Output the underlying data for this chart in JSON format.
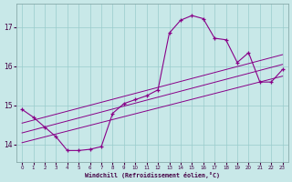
{
  "background_color": "#c8e8e8",
  "grid_color": "#99cccc",
  "line_color": "#880088",
  "hours": [
    0,
    1,
    2,
    3,
    4,
    5,
    6,
    7,
    8,
    9,
    10,
    11,
    12,
    13,
    14,
    15,
    16,
    17,
    18,
    19,
    20,
    21,
    22,
    23
  ],
  "temp": [
    14.9,
    14.7,
    14.45,
    14.2,
    13.85,
    13.85,
    13.88,
    13.95,
    14.8,
    15.05,
    15.15,
    15.25,
    15.4,
    16.85,
    17.18,
    17.3,
    17.22,
    16.72,
    16.68,
    16.1,
    16.35,
    15.6,
    15.6,
    15.92
  ],
  "line1": [
    [
      0,
      14.05
    ],
    [
      23,
      15.75
    ]
  ],
  "line2": [
    [
      0,
      14.3
    ],
    [
      23,
      16.05
    ]
  ],
  "line3": [
    [
      0,
      14.55
    ],
    [
      23,
      16.3
    ]
  ],
  "ylim": [
    13.55,
    17.6
  ],
  "xlim": [
    -0.5,
    23.5
  ],
  "yticks": [
    14,
    15,
    16,
    17
  ],
  "xticks": [
    0,
    1,
    2,
    3,
    4,
    5,
    6,
    7,
    8,
    9,
    10,
    11,
    12,
    13,
    14,
    15,
    16,
    17,
    18,
    19,
    20,
    21,
    22,
    23
  ],
  "xlabel": "Windchill (Refroidissement éolien,°C)"
}
